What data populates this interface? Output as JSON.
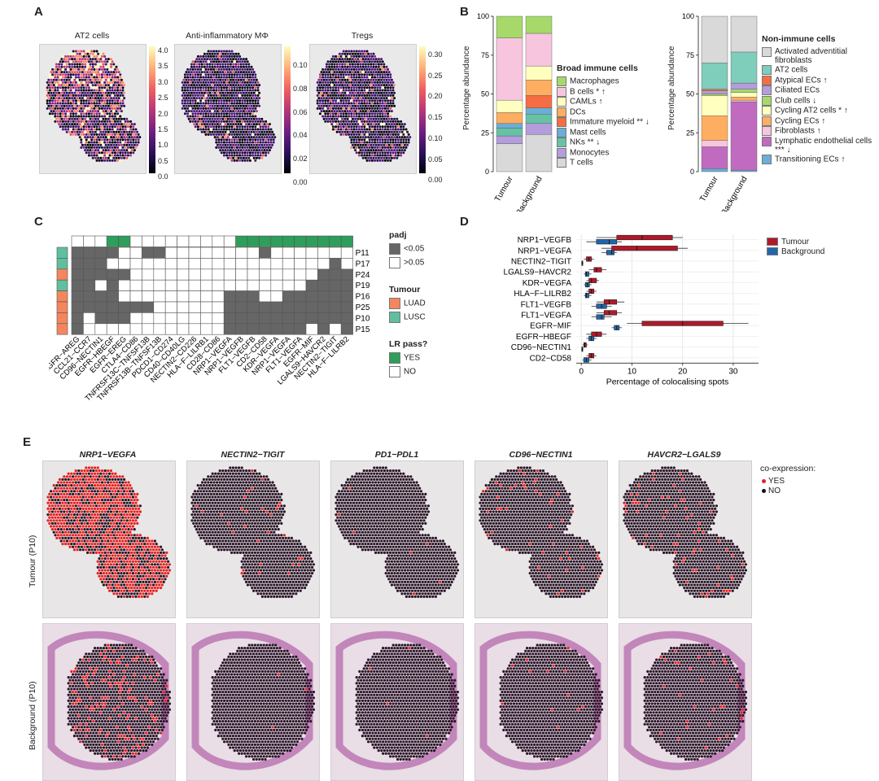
{
  "panels": {
    "a": "A",
    "b": "B",
    "c": "C",
    "d": "D",
    "e": "E"
  },
  "panel_a": {
    "maps": [
      {
        "title": "AT2 cells",
        "ticks": [
          "4.0",
          "3.5",
          "3.0",
          "2.5",
          "2.0",
          "1.5",
          "1.0",
          "0.5",
          "0.0"
        ]
      },
      {
        "title": "Anti-inflammatory MΦ",
        "ticks": [
          "0.10",
          "0.08",
          "0.06",
          "0.04",
          "0.02",
          "0.00"
        ]
      },
      {
        "title": "Tregs",
        "ticks": [
          "0.30",
          "0.25",
          "0.20",
          "0.15",
          "0.10",
          "0.05",
          "0.00"
        ]
      }
    ]
  },
  "panel_b": {
    "ylabel": "Percentage abundance",
    "yticks": [
      "100",
      "75",
      "50",
      "25",
      "0"
    ],
    "groups": [
      "Tumour",
      "Background"
    ],
    "immune_legend_title": "Broad immune cells",
    "nonimmune_legend_title": "Non-immune cells"
  },
  "panel_c": {
    "patients": [
      "P11",
      "P17",
      "P24",
      "P19",
      "P16",
      "P25",
      "P10",
      "P15"
    ],
    "pairs": [
      "EGFR−AREG",
      "CCL21−CCR7",
      "CD96−NECTIN1",
      "EGFR−HBEGF",
      "EGFR−EREG",
      "CTLA4−CD86",
      "TNFRSF13C−TNFSF13B",
      "TNFRSF13B−TNFSF13B",
      "PDCD1−CD274",
      "CD40−CD40LG",
      "NECTIN2−CD226",
      "HLA−F−LILRB1",
      "CD28−CD86",
      "NRP1−VEGFA",
      "NRP1−VEGFB",
      "FLT1−VEGFB",
      "CD2−CD58",
      "KDR−VEGFA",
      "NRP1−VEGFA",
      "FLT1−VEGFA",
      "EGFR−MIF",
      "LGALS9−HAVCR2",
      "NECTIN2−TIGIT",
      "HLA−F−LILRB2"
    ],
    "legend_padj_title": "padj",
    "legend_padj": [
      "<0.05",
      ">0.05"
    ],
    "legend_tumour_title": "Tumour",
    "legend_tumour": [
      "LUAD",
      "LUSC"
    ],
    "legend_lr_title": "LR pass?",
    "legend_lr": [
      "YES",
      "NO"
    ]
  },
  "chart_data": [
    {
      "type": "bar",
      "stacked": true,
      "title": "",
      "ylabel": "Percentage abundance",
      "categories": [
        "Tumour",
        "Background"
      ],
      "ylim": [
        0,
        100
      ],
      "legend_title": "Broad immune cells",
      "series": [
        {
          "name": "Macrophages",
          "color": "#a6d96a",
          "values": [
            14,
            11
          ]
        },
        {
          "name": "B cells * ↑",
          "color": "#f7c6de",
          "values": [
            40,
            21
          ]
        },
        {
          "name": "CAMLs ↑",
          "color": "#ffffbf",
          "values": [
            8,
            9
          ]
        },
        {
          "name": "DCs",
          "color": "#fdae61",
          "values": [
            7,
            10
          ]
        },
        {
          "name": "Immature myeloid ** ↓",
          "color": "#f46d43",
          "values": [
            0,
            8
          ]
        },
        {
          "name": "Mast cells",
          "color": "#6baed6",
          "values": [
            3,
            4
          ]
        },
        {
          "name": "NKs ** ↓",
          "color": "#66c2a5",
          "values": [
            5,
            6
          ]
        },
        {
          "name": "Monocytes",
          "color": "#b39ddb",
          "values": [
            5,
            7
          ]
        },
        {
          "name": "T cells",
          "color": "#d9d9d9",
          "values": [
            18,
            24
          ]
        }
      ]
    },
    {
      "type": "bar",
      "stacked": true,
      "title": "",
      "ylabel": "Percentage abundance",
      "categories": [
        "Tumour",
        "Background"
      ],
      "ylim": [
        0,
        100
      ],
      "legend_title": "Non-immune cells",
      "series": [
        {
          "name": "Activated adventitial fibroblasts",
          "color": "#d9d9d9",
          "values": [
            30,
            23
          ]
        },
        {
          "name": "AT2 cells",
          "color": "#7fcdbb",
          "values": [
            17,
            20
          ]
        },
        {
          "name": "Atypical ECs ↑",
          "color": "#f46d43",
          "values": [
            1,
            0
          ]
        },
        {
          "name": "Ciliated ECs",
          "color": "#b39ddb",
          "values": [
            2,
            4
          ]
        },
        {
          "name": "Club cells ↓",
          "color": "#a6d96a",
          "values": [
            1,
            2
          ]
        },
        {
          "name": "Cycling AT2 cells * ↑",
          "color": "#ffffbf",
          "values": [
            13,
            3
          ]
        },
        {
          "name": "Cycling ECs ↑",
          "color": "#fdae61",
          "values": [
            16,
            2
          ]
        },
        {
          "name": "Fibroblasts ↑",
          "color": "#f7c6de",
          "values": [
            4,
            1
          ]
        },
        {
          "name": "Lymphatic endothelial cells *** ↓",
          "color": "#c06bc0",
          "values": [
            14,
            44
          ]
        },
        {
          "name": "Transitioning ECs ↑",
          "color": "#6baed6",
          "values": [
            2,
            1
          ]
        }
      ]
    },
    {
      "type": "box",
      "title": "",
      "xlabel": "Percentage of colocalising spots",
      "xlim": [
        -1,
        35
      ],
      "xticks": [
        0,
        10,
        20,
        30
      ],
      "categories": [
        "NRP1−VEGFB",
        "NRP1−VEGFA",
        "NECTIN2−TIGIT",
        "LGALS9−HAVCR2",
        "KDR−VEGFA",
        "HLA−F−LILRB2",
        "FLT1−VEGFB",
        "FLT1−VEGFA",
        "EGFR−MIF",
        "EGFR−HBEGF",
        "CD96−NECTIN1",
        "CD2−CD58"
      ],
      "series": [
        {
          "name": "Tumour",
          "color": "#b2182b",
          "boxes": [
            [
              3,
              7,
              12,
              18,
              20
            ],
            [
              4,
              6,
              11,
              19,
              21
            ],
            [
              0.5,
              1,
              1.5,
              2,
              2.5
            ],
            [
              1.5,
              2.5,
              3,
              4,
              5
            ],
            [
              1,
              1.5,
              2,
              3,
              3.5
            ],
            [
              1,
              1.5,
              2,
              2.5,
              3
            ],
            [
              3,
              4.5,
              5.5,
              7,
              8.5
            ],
            [
              3,
              4.5,
              5.5,
              7,
              8
            ],
            [
              9,
              12,
              20,
              28,
              33
            ],
            [
              1,
              2,
              3,
              4,
              5
            ],
            [
              0.2,
              0.5,
              0.7,
              1,
              1.3
            ],
            [
              1,
              1.5,
              2,
              2.5,
              3
            ]
          ]
        },
        {
          "name": "Background",
          "color": "#2166ac",
          "boxes": [
            [
              1,
              3,
              5.5,
              7,
              8
            ],
            [
              4,
              5,
              6,
              6.5,
              7
            ],
            [
              0,
              0.1,
              0.2,
              0.3,
              0.4
            ],
            [
              0.5,
              0.8,
              1,
              1.5,
              2
            ],
            [
              0.5,
              0.8,
              1.2,
              1.6,
              2
            ],
            [
              0.5,
              0.8,
              1,
              1.5,
              2
            ],
            [
              2,
              3,
              4,
              5,
              6
            ],
            [
              2,
              3,
              4,
              4.5,
              6
            ],
            [
              6,
              6.5,
              7,
              7.5,
              8
            ],
            [
              1,
              1.5,
              2,
              2.5,
              3
            ],
            [
              0,
              0.1,
              0.2,
              0.3,
              0.4
            ],
            [
              0.2,
              0.5,
              1,
              1.5,
              2
            ]
          ]
        }
      ]
    }
  ],
  "panel_e": {
    "titles": [
      "NRP1−VEGFA",
      "NECTIN2−TIGIT",
      "PD1−PDL1",
      "CD96−NECTIN1",
      "HAVCR2−LGALS9"
    ],
    "rows": [
      "Tumour (P10)",
      "Background (P10)"
    ],
    "legend_title": "co-expression:",
    "legend": [
      "YES",
      "NO"
    ],
    "yes_fraction": {
      "tumour": [
        0.6,
        0.03,
        0.005,
        0.05,
        0.06
      ],
      "background": [
        0.12,
        0.005,
        0.002,
        0.01,
        0.03
      ]
    }
  }
}
